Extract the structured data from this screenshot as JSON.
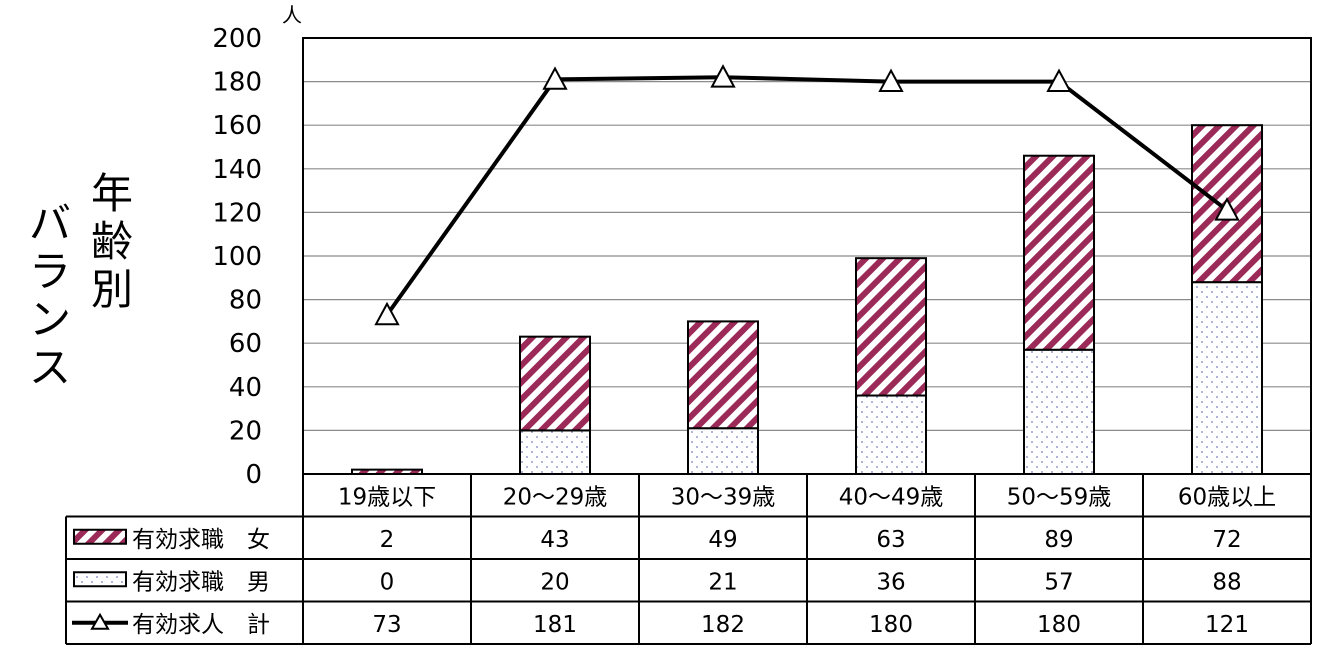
{
  "title_lines": [
    "年齢別",
    "バランス"
  ],
  "chart_data": {
    "type": "bar",
    "stacked": true,
    "unit": "人",
    "categories": [
      "19歳以下",
      "20～29歳",
      "30～39歳",
      "40～49歳",
      "50～59歳",
      "60歳以上"
    ],
    "series": [
      {
        "name": "有効求職　男",
        "kind": "bar",
        "pattern": "dots",
        "values": [
          0,
          20,
          21,
          36,
          57,
          88
        ]
      },
      {
        "name": "有効求職　女",
        "kind": "bar",
        "pattern": "diagonal-stripes",
        "values": [
          2,
          43,
          49,
          63,
          89,
          72
        ]
      },
      {
        "name": "有効求人　計",
        "kind": "line",
        "marker": "triangle",
        "values": [
          73,
          181,
          182,
          180,
          180,
          121
        ]
      }
    ],
    "table_rows": [
      {
        "label": "有効求職　女",
        "series": 1
      },
      {
        "label": "有効求職　男",
        "series": 0
      },
      {
        "label": "有効求人　計",
        "series": 2
      }
    ],
    "ylim": [
      0,
      200
    ],
    "yticks": [
      0,
      20,
      40,
      60,
      80,
      100,
      120,
      140,
      160,
      180,
      200
    ],
    "grid": true,
    "colors": {
      "stripe": "#9b2a58",
      "dot": "#7a7fc2",
      "line": "#000000"
    }
  }
}
